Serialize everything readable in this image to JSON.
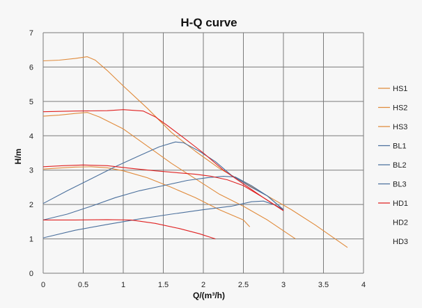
{
  "chart_data": {
    "type": "line",
    "title": "H-Q  curve",
    "xlabel": "Q/(m³/h)",
    "ylabel": "H/m",
    "xlim": [
      0,
      4
    ],
    "ylim": [
      0,
      7
    ],
    "xticks": [
      "0",
      "0.5",
      "1",
      "1.5",
      "2",
      "2.5",
      "3",
      "3.5",
      "4"
    ],
    "yticks": [
      "0",
      "1",
      "2",
      "3",
      "4",
      "5",
      "6",
      "7"
    ],
    "grid": true,
    "legend_position": "right",
    "colors": {
      "orange": "#e08a3a",
      "blue": "#4a6f9c",
      "red": "#e02020"
    },
    "series": [
      {
        "name": "HS1",
        "color": "#e08a3a",
        "points": [
          [
            0,
            6.18
          ],
          [
            0.2,
            6.2
          ],
          [
            0.4,
            6.25
          ],
          [
            0.55,
            6.3
          ],
          [
            0.65,
            6.2
          ],
          [
            0.8,
            5.9
          ],
          [
            1.0,
            5.45
          ],
          [
            1.3,
            4.8
          ],
          [
            1.6,
            4.1
          ],
          [
            1.9,
            3.55
          ],
          [
            2.2,
            3.05
          ],
          [
            2.5,
            2.65
          ],
          [
            2.8,
            2.25
          ],
          [
            3.1,
            1.85
          ],
          [
            3.4,
            1.4
          ],
          [
            3.8,
            0.75
          ]
        ]
      },
      {
        "name": "HS2",
        "color": "#e08a3a",
        "points": [
          [
            0,
            4.57
          ],
          [
            0.2,
            4.6
          ],
          [
            0.4,
            4.65
          ],
          [
            0.55,
            4.68
          ],
          [
            0.7,
            4.55
          ],
          [
            1.0,
            4.2
          ],
          [
            1.3,
            3.7
          ],
          [
            1.6,
            3.2
          ],
          [
            1.9,
            2.75
          ],
          [
            2.2,
            2.3
          ],
          [
            2.5,
            1.95
          ],
          [
            2.8,
            1.55
          ],
          [
            3.15,
            1.0
          ]
        ]
      },
      {
        "name": "HS3",
        "color": "#e08a3a",
        "points": [
          [
            0,
            3.03
          ],
          [
            0.2,
            3.06
          ],
          [
            0.4,
            3.09
          ],
          [
            0.6,
            3.1
          ],
          [
            0.8,
            3.07
          ],
          [
            1.0,
            2.98
          ],
          [
            1.3,
            2.78
          ],
          [
            1.6,
            2.5
          ],
          [
            1.9,
            2.2
          ],
          [
            2.2,
            1.85
          ],
          [
            2.5,
            1.55
          ],
          [
            2.58,
            1.35
          ]
        ]
      },
      {
        "name": "BL1",
        "color": "#4a6f9c",
        "points": [
          [
            0,
            2.03
          ],
          [
            0.3,
            2.4
          ],
          [
            0.6,
            2.75
          ],
          [
            0.9,
            3.1
          ],
          [
            1.2,
            3.42
          ],
          [
            1.45,
            3.68
          ],
          [
            1.65,
            3.82
          ],
          [
            1.75,
            3.8
          ],
          [
            1.95,
            3.55
          ],
          [
            2.15,
            3.25
          ],
          [
            2.35,
            2.85
          ],
          [
            2.6,
            2.5
          ],
          [
            2.8,
            2.25
          ],
          [
            3.0,
            1.85
          ]
        ]
      },
      {
        "name": "BL2",
        "color": "#4a6f9c",
        "points": [
          [
            0,
            1.55
          ],
          [
            0.3,
            1.72
          ],
          [
            0.6,
            1.95
          ],
          [
            0.9,
            2.2
          ],
          [
            1.2,
            2.4
          ],
          [
            1.5,
            2.55
          ],
          [
            1.8,
            2.7
          ],
          [
            2.05,
            2.78
          ],
          [
            2.25,
            2.82
          ],
          [
            2.4,
            2.8
          ],
          [
            2.6,
            2.55
          ],
          [
            2.8,
            2.25
          ],
          [
            3.0,
            1.85
          ]
        ]
      },
      {
        "name": "BL3",
        "color": "#4a6f9c",
        "points": [
          [
            0,
            1.03
          ],
          [
            0.4,
            1.25
          ],
          [
            0.8,
            1.42
          ],
          [
            1.2,
            1.58
          ],
          [
            1.6,
            1.72
          ],
          [
            2.0,
            1.85
          ],
          [
            2.35,
            1.95
          ],
          [
            2.6,
            2.08
          ],
          [
            2.75,
            2.1
          ],
          [
            2.9,
            1.98
          ],
          [
            3.0,
            1.85
          ]
        ]
      },
      {
        "name": "HD1",
        "color": "#e02020",
        "points": [
          [
            0,
            4.7
          ],
          [
            0.4,
            4.72
          ],
          [
            0.8,
            4.73
          ],
          [
            1.0,
            4.76
          ],
          [
            1.25,
            4.72
          ],
          [
            1.4,
            4.55
          ],
          [
            1.55,
            4.3
          ],
          [
            1.75,
            3.95
          ],
          [
            2.0,
            3.5
          ],
          [
            2.25,
            3.0
          ],
          [
            2.5,
            2.6
          ],
          [
            2.75,
            2.2
          ],
          [
            3.0,
            1.82
          ]
        ]
      },
      {
        "name": "HD2",
        "color": "#e02020",
        "points": [
          [
            0,
            3.1
          ],
          [
            0.25,
            3.13
          ],
          [
            0.5,
            3.15
          ],
          [
            0.8,
            3.13
          ],
          [
            1.1,
            3.05
          ],
          [
            1.4,
            2.98
          ],
          [
            1.7,
            2.92
          ],
          [
            1.9,
            2.88
          ],
          [
            2.1,
            2.82
          ],
          [
            2.3,
            2.72
          ],
          [
            2.5,
            2.55
          ],
          [
            2.75,
            2.2
          ],
          [
            3.0,
            1.82
          ]
        ]
      },
      {
        "name": "HD3",
        "color": "#e02020",
        "points": [
          [
            0,
            1.55
          ],
          [
            0.4,
            1.55
          ],
          [
            0.8,
            1.56
          ],
          [
            1.1,
            1.55
          ],
          [
            1.4,
            1.45
          ],
          [
            1.7,
            1.3
          ],
          [
            1.95,
            1.15
          ],
          [
            2.15,
            1.0
          ]
        ]
      }
    ]
  }
}
